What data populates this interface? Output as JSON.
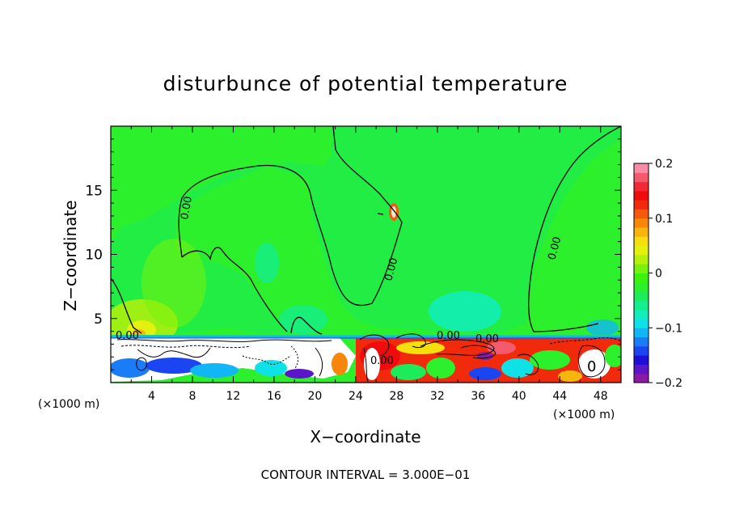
{
  "chart_data": {
    "type": "heatmap",
    "title": "disturbunce of potential temperature",
    "xlabel": "X−coordinate",
    "ylabel": "Z−coordinate",
    "x_unit": "(×1000 m)",
    "x_unit_right": "(×1000 m)",
    "xlim": [
      0,
      50
    ],
    "ylim": [
      0,
      20
    ],
    "x_ticks": [
      4,
      8,
      12,
      16,
      20,
      24,
      28,
      32,
      36,
      40,
      44,
      48
    ],
    "x_tick_labels": [
      "4",
      "8",
      "12",
      "16",
      "20",
      "24",
      "28",
      "32",
      "36",
      "40",
      "44",
      "48"
    ],
    "y_ticks": [
      5,
      10,
      15
    ],
    "y_tick_labels": [
      "5",
      "10",
      "15"
    ],
    "colorbar": {
      "min": -0.2,
      "max": 0.2,
      "labels": [
        "0.2",
        "0.1",
        "0",
        "−0.1",
        "−0.2"
      ],
      "label_values": [
        0.2,
        0.1,
        0,
        -0.1,
        -0.2
      ],
      "colors": [
        "#8c1aa8",
        "#5a16c8",
        "#1c10d8",
        "#1a45f0",
        "#1a7cf7",
        "#12b6f5",
        "#0ee2e6",
        "#11eebd",
        "#14ee8c",
        "#1ceb5a",
        "#2cf02c",
        "#3af20e",
        "#77f20d",
        "#b4f00c",
        "#e4f00e",
        "#f5e00d",
        "#f7b60d",
        "#f7860b",
        "#f45a0b",
        "#f22a0c",
        "#f00c0c",
        "#f22a36",
        "#f45a6e",
        "#f88ca6"
      ]
    },
    "contour_labels": [
      "0.00",
      "0.00",
      "0.00",
      "0.00",
      "0.00",
      "0.00",
      "0.00"
    ],
    "contour_extra_label": "0",
    "contour_interval_text": "CONTOUR INTERVAL = 3.000E−01",
    "grid": false,
    "legend": "colorbar-right"
  }
}
